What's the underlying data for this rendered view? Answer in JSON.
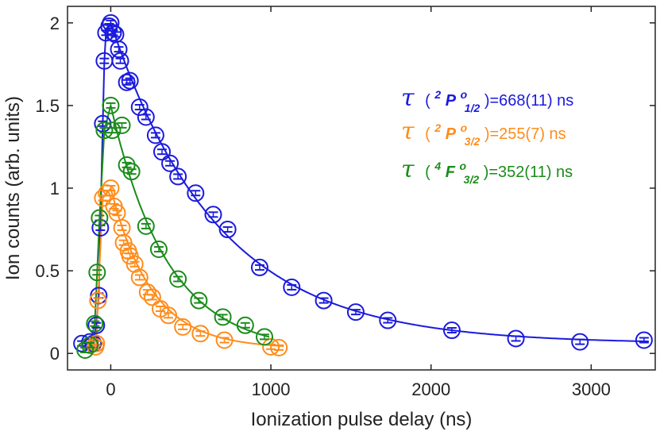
{
  "chart_data": {
    "type": "scatter",
    "title": "",
    "xlabel": "Ionization pulse delay (ns)",
    "ylabel": "Ion counts (arb. units)",
    "xlim": [
      -270,
      3400
    ],
    "ylim": [
      -0.1,
      2.1
    ],
    "xticks": [
      0,
      1000,
      2000,
      3000
    ],
    "xtick_labels": [
      "0",
      "1000",
      "2000",
      "3000"
    ],
    "yticks": [
      0,
      0.5,
      1,
      1.5,
      2
    ],
    "ytick_labels": [
      "0",
      "0.5",
      "1",
      "1.5",
      "2"
    ],
    "grid": false,
    "legend_position": "upper-right (text annotations)",
    "series": [
      {
        "name": "2P1/2",
        "color": "#1a1adf",
        "label_symbol": "τ",
        "label_open": "(",
        "label_sup": "2",
        "label_term": "P",
        "label_term_sup": "o",
        "label_term_sub": "1/2",
        "label_rest": ")=668(11) ns",
        "points": [
          [
            -180,
            0.06
          ],
          [
            -130,
            0.07
          ],
          [
            -110,
            0.06
          ],
          [
            -90,
            0.17
          ],
          [
            -75,
            0.35
          ],
          [
            -65,
            0.76
          ],
          [
            -50,
            1.39
          ],
          [
            -40,
            1.77
          ],
          [
            -30,
            1.94
          ],
          [
            -10,
            1.98
          ],
          [
            0,
            2.0
          ],
          [
            15,
            1.94
          ],
          [
            30,
            1.93
          ],
          [
            50,
            1.84
          ],
          [
            60,
            1.77
          ],
          [
            100,
            1.64
          ],
          [
            120,
            1.65
          ],
          [
            180,
            1.49
          ],
          [
            220,
            1.43
          ],
          [
            280,
            1.32
          ],
          [
            320,
            1.22
          ],
          [
            370,
            1.15
          ],
          [
            420,
            1.07
          ],
          [
            530,
            0.97
          ],
          [
            640,
            0.84
          ],
          [
            730,
            0.75
          ],
          [
            930,
            0.52
          ],
          [
            1130,
            0.4
          ],
          [
            1330,
            0.32
          ],
          [
            1530,
            0.25
          ],
          [
            1730,
            0.2
          ],
          [
            2130,
            0.14
          ],
          [
            2530,
            0.09
          ],
          [
            2930,
            0.07
          ],
          [
            3330,
            0.08
          ]
        ],
        "fit": {
          "y0": 0.06,
          "A": 2.28,
          "tau": 668,
          "t0": -25
        }
      },
      {
        "name": "2P3/2",
        "color": "#ff8c1a",
        "label_symbol": "τ",
        "label_open": "(",
        "label_sup": "2",
        "label_term": "P",
        "label_term_sup": "o",
        "label_term_sub": "3/2",
        "label_rest": ")=255(7) ns",
        "points": [
          [
            -95,
            0.04
          ],
          [
            -90,
            0.06
          ],
          [
            -80,
            0.32
          ],
          [
            -50,
            0.94
          ],
          [
            -25,
            0.97
          ],
          [
            0,
            1.0
          ],
          [
            20,
            0.89
          ],
          [
            40,
            0.85
          ],
          [
            70,
            0.76
          ],
          [
            80,
            0.67
          ],
          [
            110,
            0.62
          ],
          [
            120,
            0.59
          ],
          [
            150,
            0.54
          ],
          [
            180,
            0.46
          ],
          [
            230,
            0.37
          ],
          [
            260,
            0.34
          ],
          [
            310,
            0.27
          ],
          [
            360,
            0.23
          ],
          [
            450,
            0.16
          ],
          [
            560,
            0.12
          ],
          [
            710,
            0.08
          ],
          [
            1000,
            0.04
          ],
          [
            1050,
            0.035
          ]
        ],
        "fit": {
          "y0": 0.03,
          "A": 1.0,
          "tau": 255,
          "t0": -20
        }
      },
      {
        "name": "4F3/2",
        "color": "#1a8c1a",
        "label_symbol": "τ",
        "label_open": "(",
        "label_sup": "4",
        "label_term": "F",
        "label_term_sup": "o",
        "label_term_sub": "3/2",
        "label_rest": ")=352(11) ns",
        "points": [
          [
            -160,
            0.02
          ],
          [
            -130,
            0.05
          ],
          [
            -100,
            0.18
          ],
          [
            -85,
            0.49
          ],
          [
            -70,
            0.82
          ],
          [
            -40,
            1.35
          ],
          [
            0,
            1.5
          ],
          [
            10,
            1.35
          ],
          [
            70,
            1.38
          ],
          [
            100,
            1.14
          ],
          [
            130,
            1.1
          ],
          [
            220,
            0.77
          ],
          [
            300,
            0.63
          ],
          [
            420,
            0.45
          ],
          [
            550,
            0.32
          ],
          [
            700,
            0.22
          ],
          [
            840,
            0.17
          ],
          [
            960,
            0.1
          ]
        ],
        "fit": {
          "y0": 0.01,
          "A": 1.52,
          "tau": 352,
          "t0": -15
        }
      }
    ]
  }
}
